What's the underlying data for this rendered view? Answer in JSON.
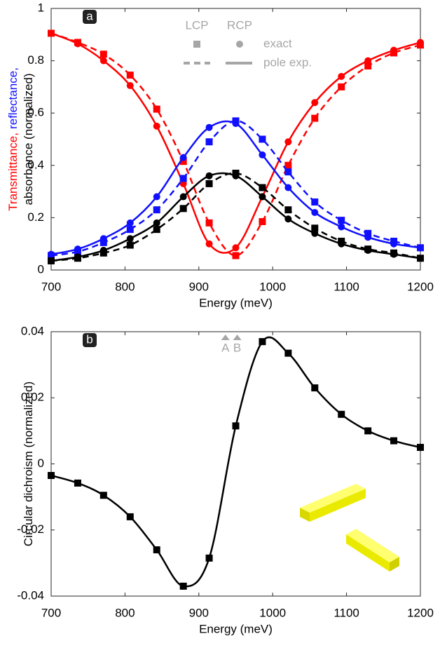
{
  "chart_data": [
    {
      "type": "line",
      "panel_label": "a",
      "xlabel": "Energy (meV)",
      "ylabel": [
        [
          {
            "text": "Transmittance,",
            "color": "#ff0000"
          },
          {
            "text": "reflectance,",
            "color": "#1010ff"
          }
        ],
        [
          {
            "text": "absorbance (normalized)",
            "color": "#000000"
          }
        ]
      ],
      "x": [
        700,
        736,
        771,
        807,
        843,
        879,
        914,
        950,
        986,
        1021,
        1057,
        1093,
        1129,
        1164,
        1200
      ],
      "xlim": [
        700,
        1200
      ],
      "xticks": [
        700,
        800,
        900,
        1000,
        1100,
        1200
      ],
      "ylim": [
        0,
        1
      ],
      "yticks": [
        0,
        0.2,
        0.4,
        0.6,
        0.8,
        1
      ],
      "legend": {
        "color": "#a6a6a6",
        "markers": [
          "LCP",
          "RCP"
        ],
        "lines": [
          "exact",
          "pole exp."
        ]
      },
      "series": [
        {
          "color": "#ff0000",
          "marker": "square",
          "line": "dashed",
          "values": [
            0.905,
            0.87,
            0.825,
            0.745,
            0.615,
            0.415,
            0.18,
            0.055,
            0.185,
            0.4,
            0.58,
            0.7,
            0.78,
            0.83,
            0.86
          ]
        },
        {
          "color": "#ff0000",
          "marker": "circle",
          "line": "solid",
          "values": [
            0.905,
            0.865,
            0.8,
            0.705,
            0.55,
            0.33,
            0.1,
            0.085,
            0.28,
            0.49,
            0.64,
            0.74,
            0.8,
            0.84,
            0.87
          ]
        },
        {
          "color": "#1010ff",
          "marker": "square",
          "line": "dashed",
          "values": [
            0.055,
            0.07,
            0.105,
            0.155,
            0.23,
            0.35,
            0.49,
            0.57,
            0.5,
            0.375,
            0.26,
            0.19,
            0.14,
            0.11,
            0.085
          ]
        },
        {
          "color": "#1010ff",
          "marker": "circle",
          "line": "solid",
          "values": [
            0.06,
            0.08,
            0.12,
            0.18,
            0.28,
            0.43,
            0.545,
            0.56,
            0.44,
            0.315,
            0.22,
            0.165,
            0.125,
            0.1,
            0.085
          ]
        },
        {
          "color": "#000000",
          "marker": "square",
          "line": "dashed",
          "values": [
            0.035,
            0.045,
            0.065,
            0.095,
            0.155,
            0.235,
            0.33,
            0.37,
            0.315,
            0.23,
            0.16,
            0.11,
            0.08,
            0.065,
            0.045
          ]
        },
        {
          "color": "#000000",
          "marker": "circle",
          "line": "solid",
          "values": [
            0.035,
            0.05,
            0.075,
            0.12,
            0.18,
            0.28,
            0.36,
            0.36,
            0.28,
            0.195,
            0.14,
            0.1,
            0.075,
            0.06,
            0.045
          ]
        }
      ]
    },
    {
      "type": "line",
      "panel_label": "b",
      "xlabel": "Energy (meV)",
      "ylabel": [
        [
          {
            "text": "Circular dichroism (normalized)",
            "color": "#000000"
          }
        ]
      ],
      "x": [
        700,
        736,
        771,
        807,
        843,
        879,
        914,
        950,
        986,
        1021,
        1057,
        1093,
        1129,
        1164,
        1200
      ],
      "xlim": [
        700,
        1200
      ],
      "xticks": [
        700,
        800,
        900,
        1000,
        1100,
        1200
      ],
      "ylim": [
        -0.04,
        0.04
      ],
      "yticks": [
        -0.04,
        -0.02,
        0,
        0.02,
        0.04
      ],
      "markers_top": {
        "color": "#a6a6a6",
        "labels": [
          "A",
          "B"
        ],
        "x": [
          936,
          952
        ]
      },
      "series": [
        {
          "color": "#000000",
          "marker": "square",
          "line": "solid",
          "values": [
            -0.0035,
            -0.0058,
            -0.0095,
            -0.016,
            -0.026,
            -0.037,
            -0.0285,
            0.0115,
            0.037,
            0.0335,
            0.023,
            0.015,
            0.01,
            0.007,
            0.005
          ]
        }
      ]
    }
  ]
}
